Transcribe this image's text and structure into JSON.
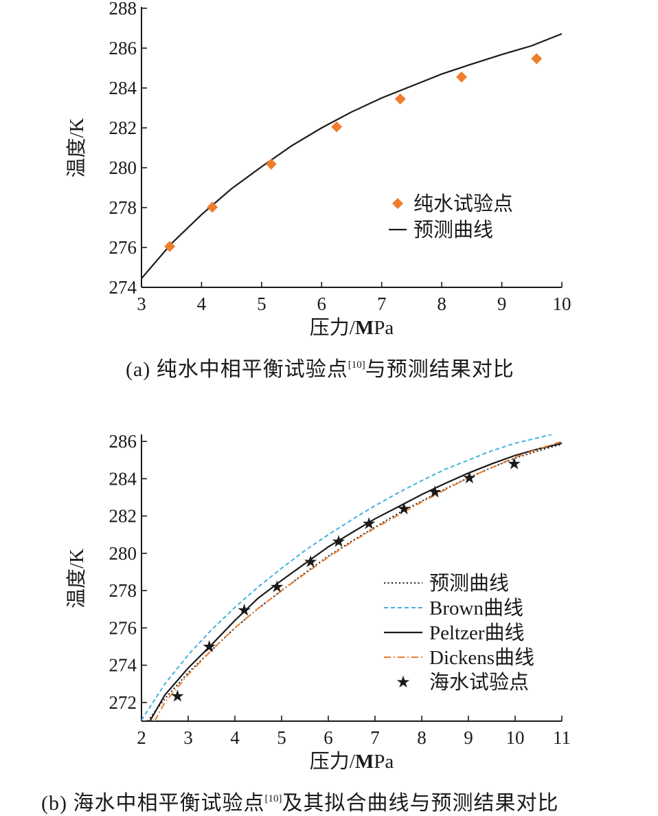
{
  "colors": {
    "orange": "#ee7d2d",
    "blue": "#3fb2dc",
    "black": "#1a1a1a"
  },
  "captions": {
    "a": {
      "main": "(a) 纯水中相平衡试验点",
      "ref": "[10]",
      "tail": "与预测结果对比"
    },
    "b": {
      "main": "(b) 海水中相平衡试验点",
      "ref": "[10]",
      "tail": "及其拟合曲线与预测结果对比"
    }
  },
  "chart_data": [
    {
      "type": "line",
      "xlabel": {
        "main": "压力/",
        "bold": "M",
        "rest": "Pa"
      },
      "ylabel": "温度/K",
      "xlim": [
        3,
        10
      ],
      "ylim": [
        274,
        288
      ],
      "xticks": [
        "3",
        "4",
        "5",
        "6",
        "7",
        "8",
        "9",
        "10"
      ],
      "yticks": [
        "274",
        "276",
        "278",
        "280",
        "282",
        "284",
        "286",
        "288"
      ],
      "series": [
        {
          "name": "纯水试验点",
          "kind": "scatter",
          "marker": "diamond",
          "color": "#ee7d2d",
          "points": [
            [
              3.47,
              276.05
            ],
            [
              4.18,
              278.02
            ],
            [
              5.16,
              280.18
            ],
            [
              6.25,
              282.05
            ],
            [
              7.31,
              283.45
            ],
            [
              8.33,
              284.55
            ],
            [
              9.58,
              285.47
            ]
          ]
        },
        {
          "name": "预测曲线",
          "kind": "line",
          "style": "solid",
          "color": "#1a1a1a",
          "points": [
            [
              3.0,
              274.45
            ],
            [
              3.5,
              276.2
            ],
            [
              4.0,
              277.65
            ],
            [
              4.5,
              278.95
            ],
            [
              5.0,
              280.05
            ],
            [
              5.5,
              281.1
            ],
            [
              6.0,
              282.0
            ],
            [
              6.5,
              282.8
            ],
            [
              7.0,
              283.5
            ],
            [
              7.5,
              284.1
            ],
            [
              8.0,
              284.7
            ],
            [
              8.5,
              285.2
            ],
            [
              9.0,
              285.68
            ],
            [
              9.5,
              286.12
            ],
            [
              10.0,
              286.72
            ]
          ]
        }
      ],
      "legend": "lower-right"
    },
    {
      "type": "line",
      "xlabel": {
        "main": "压力/",
        "bold": "M",
        "rest": "Pa"
      },
      "ylabel": "温度/K",
      "xlim": [
        2,
        11
      ],
      "ylim": [
        271,
        286.3
      ],
      "xticks": [
        "2",
        "3",
        "4",
        "5",
        "6",
        "7",
        "8",
        "9",
        "10",
        "11"
      ],
      "yticks": [
        "272",
        "274",
        "276",
        "278",
        "280",
        "282",
        "284",
        "286"
      ],
      "series": [
        {
          "name": "预测曲线",
          "kind": "line",
          "style": "dotted",
          "color": "#1a1a1a",
          "points": [
            [
              2.13,
              271.0
            ],
            [
              2.5,
              272.2
            ],
            [
              3.0,
              273.6
            ],
            [
              3.5,
              274.8
            ],
            [
              4.0,
              276.0
            ],
            [
              4.5,
              277.05
            ],
            [
              5.0,
              278.0
            ],
            [
              5.5,
              278.95
            ],
            [
              6.0,
              279.85
            ],
            [
              6.5,
              280.65
            ],
            [
              7.0,
              281.4
            ],
            [
              7.5,
              282.15
            ],
            [
              8.0,
              282.8
            ],
            [
              8.5,
              283.45
            ],
            [
              9.0,
              284.05
            ],
            [
              9.5,
              284.6
            ],
            [
              10.0,
              285.1
            ],
            [
              10.5,
              285.5
            ],
            [
              11.0,
              285.85
            ]
          ]
        },
        {
          "name": "Brown曲线",
          "kind": "line",
          "style": "dashed",
          "color": "#3fb2dc",
          "points": [
            [
              2.0,
              271.05
            ],
            [
              2.5,
              273.0
            ],
            [
              3.0,
              274.55
            ],
            [
              3.5,
              275.9
            ],
            [
              4.0,
              277.1
            ],
            [
              4.5,
              278.2
            ],
            [
              5.0,
              279.2
            ],
            [
              5.5,
              280.15
            ],
            [
              6.0,
              281.0
            ],
            [
              6.5,
              281.8
            ],
            [
              7.0,
              282.55
            ],
            [
              7.5,
              283.25
            ],
            [
              8.0,
              283.9
            ],
            [
              8.5,
              284.5
            ],
            [
              9.0,
              285.0
            ],
            [
              9.5,
              285.5
            ],
            [
              10.0,
              285.9
            ],
            [
              10.5,
              286.2
            ],
            [
              10.9,
              286.45
            ]
          ]
        },
        {
          "name": "Peltzer曲线",
          "kind": "line",
          "style": "solid",
          "color": "#1a1a1a",
          "points": [
            [
              2.18,
              271.0
            ],
            [
              2.5,
              272.4
            ],
            [
              3.0,
              273.85
            ],
            [
              3.5,
              275.1
            ],
            [
              4.0,
              276.4
            ],
            [
              4.5,
              277.6
            ],
            [
              5.0,
              278.55
            ],
            [
              5.5,
              279.45
            ],
            [
              6.0,
              280.35
            ],
            [
              6.5,
              281.1
            ],
            [
              7.0,
              281.85
            ],
            [
              7.5,
              282.5
            ],
            [
              8.0,
              283.15
            ],
            [
              8.5,
              283.75
            ],
            [
              9.0,
              284.3
            ],
            [
              9.5,
              284.8
            ],
            [
              10.0,
              285.25
            ],
            [
              10.5,
              285.6
            ],
            [
              11.0,
              285.9
            ]
          ]
        },
        {
          "name": "Dickens曲线",
          "kind": "line",
          "style": "dashdot",
          "color": "#ee7d2d",
          "points": [
            [
              2.28,
              271.0
            ],
            [
              2.5,
              272.0
            ],
            [
              3.0,
              273.5
            ],
            [
              3.5,
              274.8
            ],
            [
              4.0,
              276.0
            ],
            [
              4.5,
              277.05
            ],
            [
              5.0,
              278.0
            ],
            [
              5.5,
              278.9
            ],
            [
              6.0,
              279.8
            ],
            [
              6.5,
              280.6
            ],
            [
              7.0,
              281.35
            ],
            [
              7.5,
              282.05
            ],
            [
              8.0,
              282.75
            ],
            [
              8.5,
              283.4
            ],
            [
              9.0,
              284.05
            ],
            [
              9.5,
              284.6
            ],
            [
              10.0,
              285.15
            ],
            [
              10.5,
              285.6
            ],
            [
              11.0,
              286.0
            ]
          ]
        },
        {
          "name": "海水试验点",
          "kind": "scatter",
          "marker": "star",
          "color": "#1a1a1a",
          "points": [
            [
              2.77,
              272.35
            ],
            [
              3.45,
              275.0
            ],
            [
              4.2,
              276.95
            ],
            [
              4.9,
              278.2
            ],
            [
              5.62,
              279.55
            ],
            [
              6.22,
              280.65
            ],
            [
              6.87,
              281.6
            ],
            [
              7.62,
              282.4
            ],
            [
              8.28,
              283.3
            ],
            [
              9.02,
              284.05
            ],
            [
              9.98,
              284.8
            ]
          ]
        }
      ],
      "legend": "lower-right"
    }
  ]
}
